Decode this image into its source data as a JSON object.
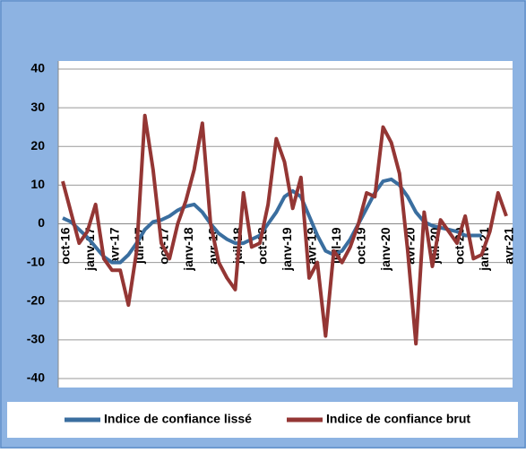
{
  "chart_data": {
    "type": "line",
    "categories": [
      "oct-16",
      null,
      null,
      "janv-17",
      null,
      null,
      "avr-17",
      null,
      null,
      "juil-17",
      null,
      null,
      "oct-17",
      null,
      null,
      "janv-18",
      null,
      null,
      "avr-18",
      null,
      null,
      "juil-18",
      null,
      null,
      "oct-18",
      null,
      null,
      "janv-19",
      null,
      null,
      "avr-19",
      null,
      null,
      "juil-19",
      null,
      null,
      "oct-19",
      null,
      null,
      "janv-20",
      null,
      null,
      "avr-20",
      null,
      null,
      "juil-20",
      null,
      null,
      "oct-20",
      null,
      null,
      "janv-21",
      null,
      null,
      "avr-21"
    ],
    "series": [
      {
        "name": "Indice de confiance lissé",
        "color": "#3a6e9f",
        "values": [
          1.5,
          0.5,
          -1.5,
          -3.5,
          -6,
          -8.5,
          -10,
          -10,
          -8,
          -5,
          -1.5,
          0.5,
          1,
          2,
          3.5,
          4.5,
          5,
          3,
          0,
          -2.5,
          -4,
          -5,
          -5,
          -4,
          -3,
          0,
          3,
          7,
          8.5,
          7,
          2,
          -3,
          -7,
          -8,
          -7,
          -4,
          0,
          4,
          8,
          11,
          11.5,
          10,
          7,
          3,
          0.5,
          -0.5,
          -1,
          -1.5,
          -2,
          -3,
          -3,
          -3,
          null,
          null,
          null
        ]
      },
      {
        "name": "Indice de confiance brut",
        "color": "#943634",
        "values": [
          11,
          3,
          -5,
          -2,
          5,
          -9,
          -12,
          -12,
          -21,
          -7,
          28,
          14,
          -5,
          -9,
          0,
          6,
          14,
          26,
          0,
          -10,
          -14,
          -17,
          8,
          -6,
          -5,
          5,
          22,
          16,
          4,
          12,
          -14,
          -10,
          -29,
          -7,
          -10,
          -6,
          0,
          8,
          7,
          25,
          21,
          13,
          -7,
          -31,
          3,
          -11,
          1,
          -2,
          -5,
          2,
          -9,
          -8,
          -2,
          8,
          2
        ]
      }
    ],
    "ylim": [
      -40,
      40
    ],
    "yticks": [
      -40,
      -30,
      -20,
      -10,
      0,
      10,
      20,
      30,
      40
    ],
    "grid": true
  }
}
